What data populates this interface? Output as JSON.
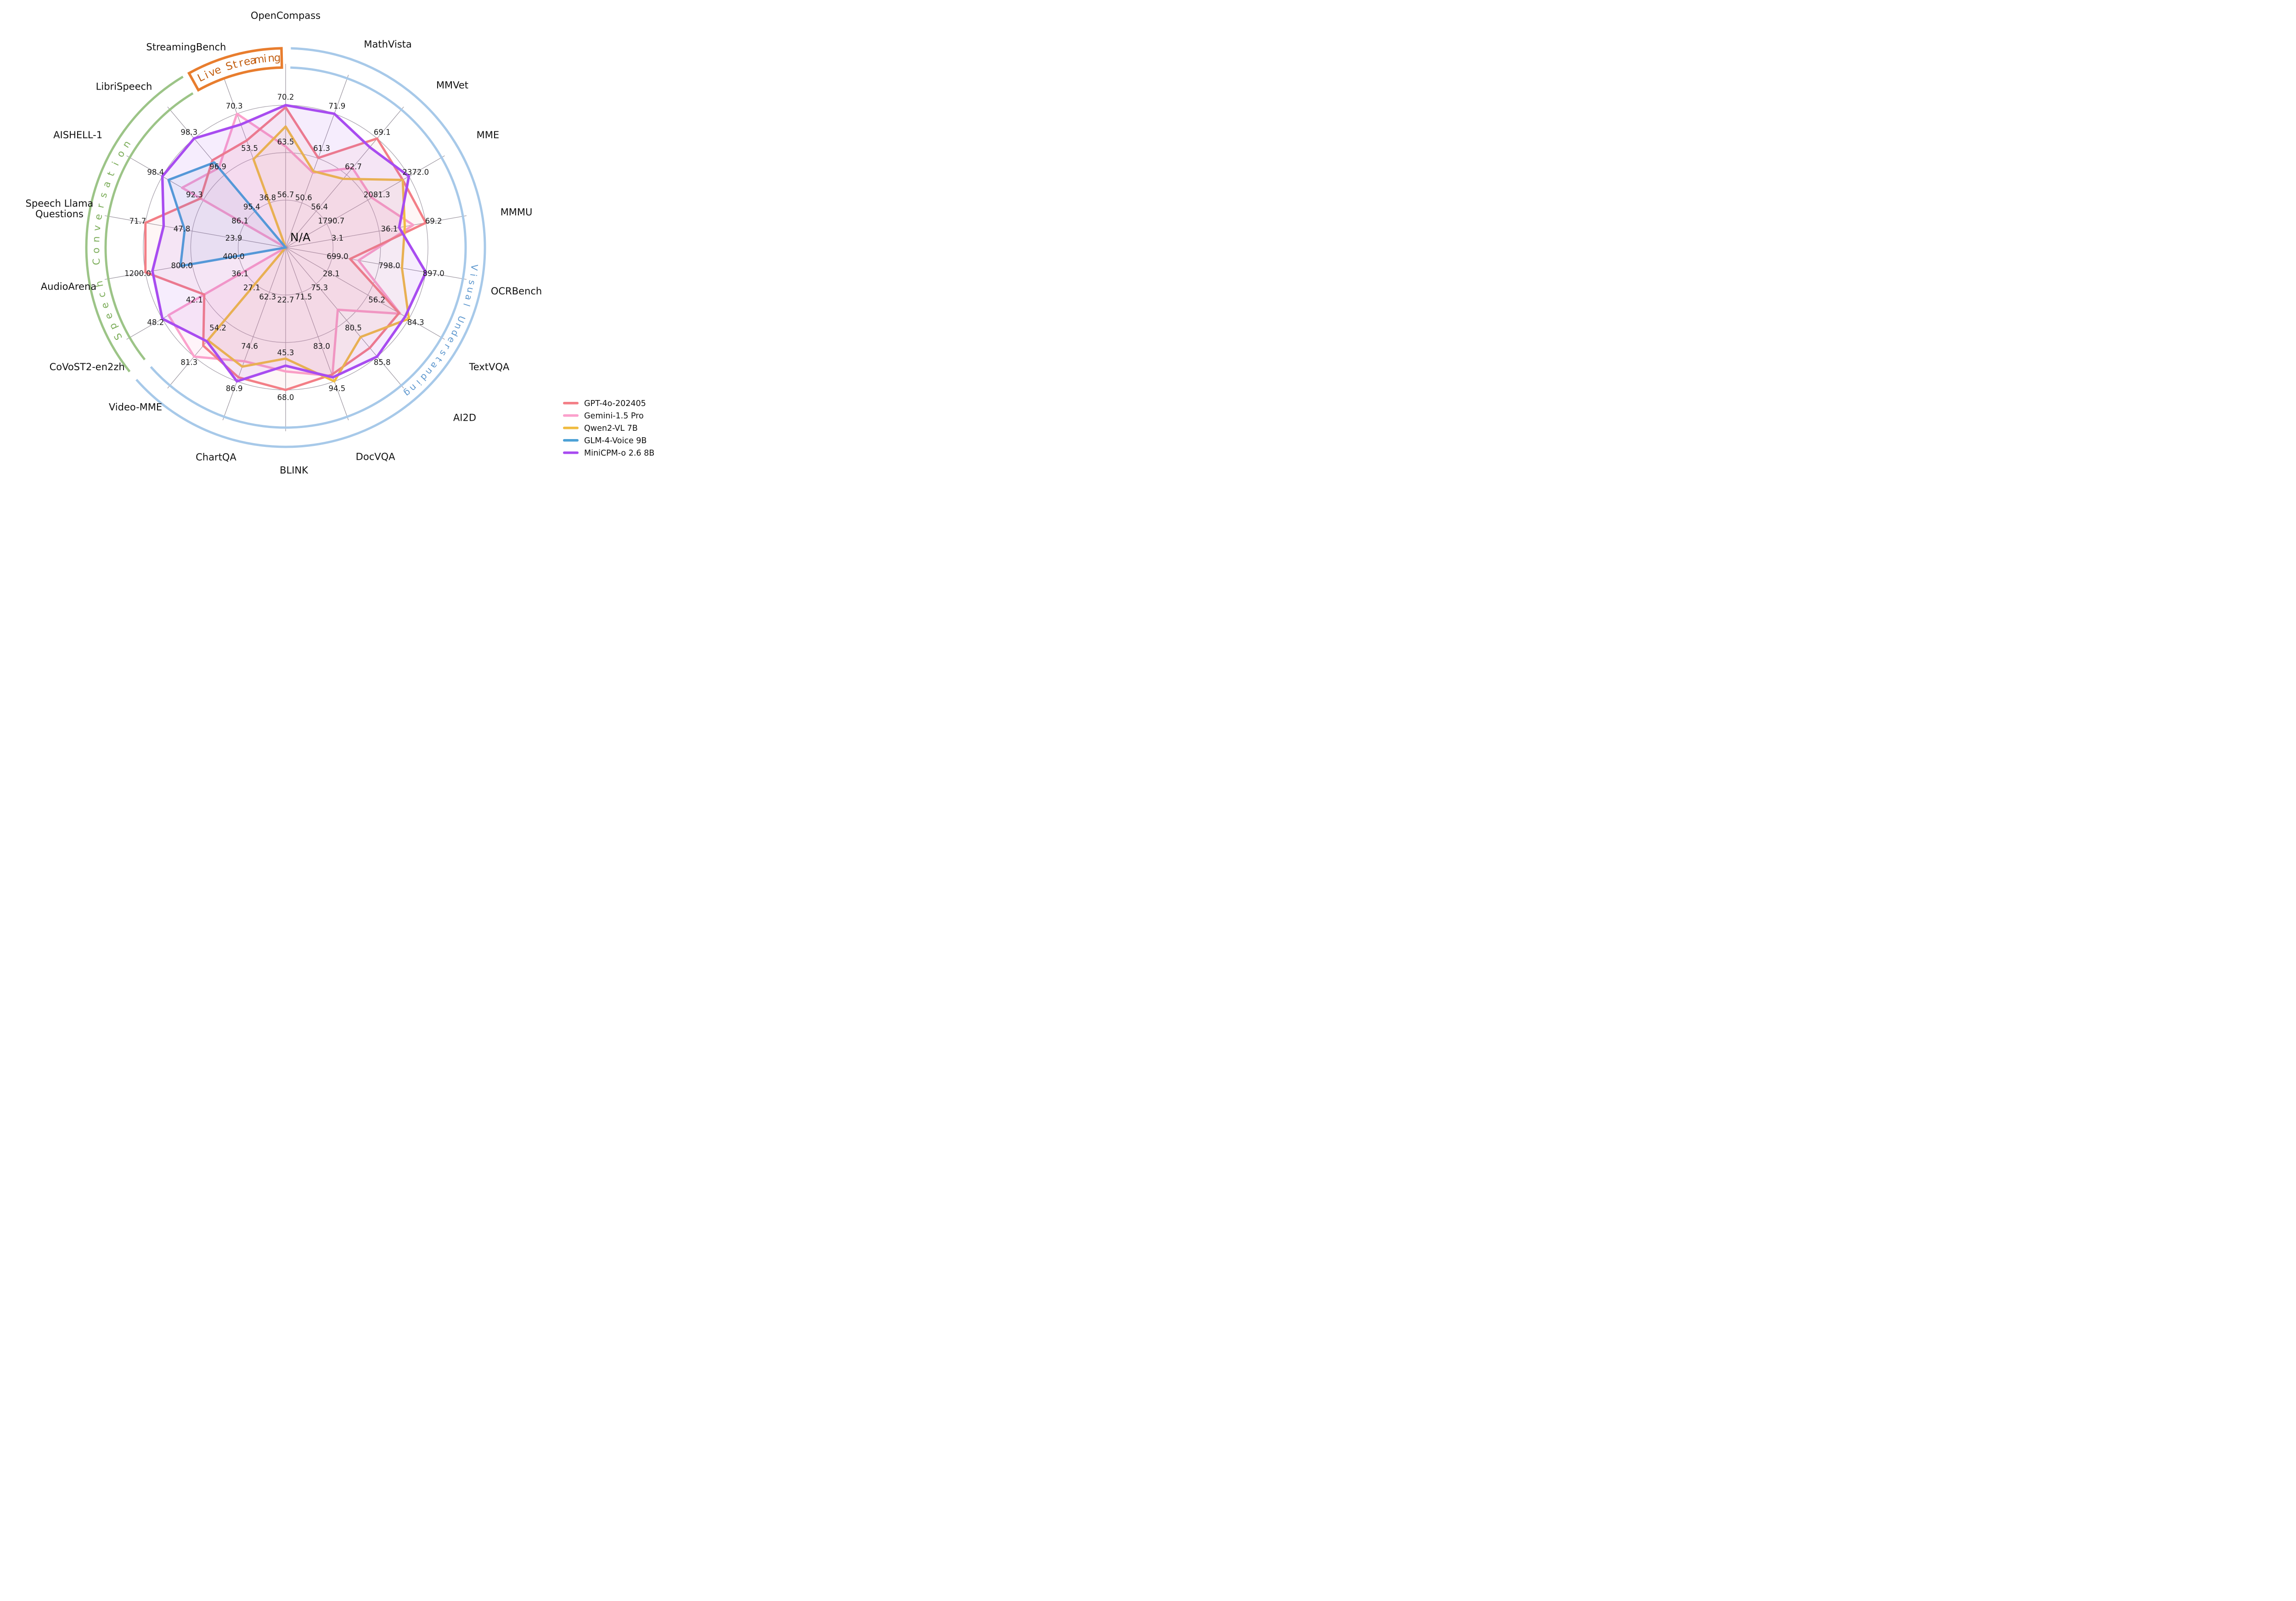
{
  "chart_data": {
    "type": "radar",
    "title": "",
    "center_label": "N/A",
    "grid": "on",
    "axes": [
      {
        "name": "OpenCompass",
        "group": "visual",
        "ticks": [
          "56.7",
          "63.5",
          "70.2"
        ]
      },
      {
        "name": "MathVista",
        "group": "visual",
        "ticks": [
          "50.6",
          "61.3",
          "71.9"
        ]
      },
      {
        "name": "MMVet",
        "group": "visual",
        "ticks": [
          "56.4",
          "62.7",
          "69.1"
        ]
      },
      {
        "name": "MME",
        "group": "visual",
        "ticks": [
          "1790.7",
          "2081.3",
          "2372.0"
        ]
      },
      {
        "name": "MMMU",
        "group": "visual",
        "ticks": [
          "3.1",
          "36.1",
          "69.2"
        ]
      },
      {
        "name": "OCRBench",
        "group": "visual",
        "ticks": [
          "699.0",
          "798.0",
          "897.0"
        ]
      },
      {
        "name": "TextVQA",
        "group": "visual",
        "ticks": [
          "28.1",
          "56.2",
          "84.3"
        ]
      },
      {
        "name": "AI2D",
        "group": "visual",
        "ticks": [
          "75.3",
          "80.5",
          "85.8"
        ]
      },
      {
        "name": "DocVQA",
        "group": "visual",
        "ticks": [
          "71.5",
          "83.0",
          "94.5"
        ]
      },
      {
        "name": "BLINK",
        "group": "visual",
        "ticks": [
          "22.7",
          "45.3",
          "68.0"
        ]
      },
      {
        "name": "ChartQA",
        "group": "visual",
        "ticks": [
          "62.3",
          "74.6",
          "86.9"
        ]
      },
      {
        "name": "Video-MME",
        "group": "visual",
        "ticks": [
          "27.1",
          "54.2",
          "81.3"
        ]
      },
      {
        "name": "CoVoST2-en2zh",
        "group": "speech",
        "ticks": [
          "36.1",
          "42.1",
          "48.2"
        ]
      },
      {
        "name": "AudioArena",
        "group": "speech",
        "ticks": [
          "400.0",
          "800.0",
          "1200.0"
        ]
      },
      {
        "name": "Speech Llama\nQuestions",
        "group": "speech",
        "ticks": [
          "23.9",
          "47.8",
          "71.7"
        ]
      },
      {
        "name": "AISHELL-1",
        "group": "speech",
        "ticks": [
          "86.1",
          "92.3",
          "98.4"
        ]
      },
      {
        "name": "LibriSpeech",
        "group": "speech",
        "ticks": [
          "95.4",
          "96.9",
          "98.3"
        ]
      },
      {
        "name": "StreamingBench",
        "group": "live",
        "ticks": [
          "36.8",
          "53.5",
          "70.3"
        ]
      }
    ],
    "series": [
      {
        "name": "GPT-4o-202405",
        "color": "#F37E86",
        "radial_fractions": [
          0.985,
          0.67,
          1.0,
          0.95,
          1.0,
          0.46,
          0.92,
          0.92,
          0.95,
          1.0,
          0.97,
          0.9,
          0.66,
          1.0,
          1.0,
          0.69,
          0.8,
          0.8
        ]
      },
      {
        "name": "Gemini-1.5 Pro",
        "color": "#FBA1CC",
        "radial_fractions": [
          0.71,
          0.56,
          0.73,
          0.7,
          0.91,
          0.52,
          0.93,
          0.57,
          0.96,
          0.87,
          0.85,
          1.0,
          0.95,
          0.0,
          0.0,
          0.84,
          0.73,
          1.0
        ]
      },
      {
        "name": "Qwen2-VL 7B",
        "color": "#F0BC42",
        "radial_fractions": [
          0.85,
          0.57,
          0.63,
          0.95,
          0.85,
          0.83,
          1.0,
          0.82,
          1.0,
          0.78,
          0.89,
          0.85,
          0.0,
          0.0,
          0.0,
          0.0,
          0.0,
          0.66
        ]
      },
      {
        "name": "GLM-4-Voice 9B",
        "color": "#4CA1D6",
        "radial_fractions": [
          0.0,
          0.0,
          0.0,
          0.0,
          0.0,
          0.0,
          0.0,
          0.0,
          0.0,
          0.0,
          0.0,
          0.0,
          0.0,
          0.75,
          0.72,
          0.95,
          0.78,
          0.0
        ]
      },
      {
        "name": "MiniCPM-o 2.6 8B",
        "color": "#A84CF0",
        "radial_fractions": [
          1.0,
          1.0,
          0.92,
          1.0,
          0.81,
          1.0,
          0.97,
          1.0,
          0.97,
          0.83,
          1.0,
          0.86,
          1.0,
          0.95,
          0.87,
          1.0,
          1.0,
          0.92
        ]
      }
    ],
    "groups": [
      {
        "id": "visual",
        "label": "Visual Understanding",
        "band_color": "#A7C9E9",
        "text_color": "#5D97CE",
        "start_deg": 1.5,
        "end_deg": 228.5,
        "boxed": false,
        "text_start_deg": 96,
        "text_end_deg": 140
      },
      {
        "id": "speech",
        "label": "Speech Conversation",
        "band_color": "#9CC487",
        "text_color": "#7CAD5A",
        "start_deg": 231.5,
        "end_deg": 329,
        "boxed": false,
        "text_start_deg": 242,
        "text_end_deg": 303
      },
      {
        "id": "live",
        "label": "Live Streaming",
        "band_color": "#E87D2E",
        "text_color": "#C25E11",
        "start_deg": 331,
        "end_deg": 358.8,
        "boxed": true,
        "text_start_deg": 333.5,
        "text_end_deg": 357.5
      }
    ],
    "legend": {
      "position": "lower right",
      "items": [
        {
          "label": "GPT-4o-202405",
          "color": "#F37E86"
        },
        {
          "label": "Gemini-1.5 Pro",
          "color": "#FBA1CC"
        },
        {
          "label": "Qwen2-VL 7B",
          "color": "#F0BC42"
        },
        {
          "label": "GLM-4-Voice 9B",
          "color": "#4CA1D6"
        },
        {
          "label": "MiniCPM-o 2.6 8B",
          "color": "#A84CF0"
        }
      ]
    }
  }
}
